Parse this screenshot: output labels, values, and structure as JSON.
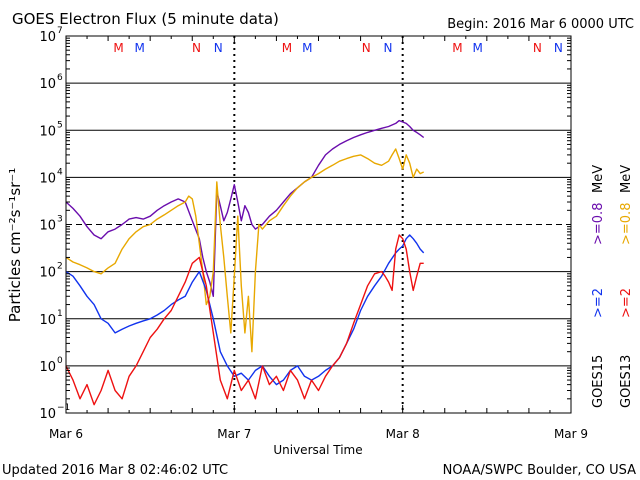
{
  "header": {
    "title": "GOES Electron Flux (5 minute data)",
    "begin": "Begin: 2016 Mar 6 0000 UTC"
  },
  "footer": {
    "updated": "Updated 2016 Mar  8 02:46:02 UTC",
    "credit": "NOAA/SWPC Boulder, CO USA"
  },
  "colors": {
    "goes13_high": "#e8a800",
    "goes15_high": "#6a0dad",
    "goes13_low": "#ee1111",
    "goes15_low": "#1133ee",
    "grid": "#000000"
  },
  "chart_data": {
    "type": "line",
    "xlabel": "Universal Time",
    "ylabel": "Particles cm⁻²s⁻¹sr⁻¹",
    "xlim": [
      0,
      72
    ],
    "ylim_exponent": [
      -1,
      7
    ],
    "x_ticks": [
      {
        "hour": 0,
        "label": "Mar 6"
      },
      {
        "hour": 24,
        "label": "Mar 7"
      },
      {
        "hour": 48,
        "label": "Mar 8"
      },
      {
        "hour": 72,
        "label": "Mar 9"
      }
    ],
    "y_ticks": [
      {
        "exp": 7,
        "label": "7"
      },
      {
        "exp": 6,
        "label": "6"
      },
      {
        "exp": 5,
        "label": "5"
      },
      {
        "exp": 4,
        "label": "4"
      },
      {
        "exp": 3,
        "label": "3"
      },
      {
        "exp": 2,
        "label": "2"
      },
      {
        "exp": 1,
        "label": "1"
      },
      {
        "exp": 0,
        "label": "0"
      },
      {
        "exp": -1,
        "label": "−1"
      }
    ],
    "tick_base": "10",
    "y_dashed_at": 3,
    "day_marker_hours": [
      24,
      48
    ],
    "satellite_markers": [
      {
        "hour": 7.5,
        "label": "M",
        "sat": "GOES13"
      },
      {
        "hour": 10.5,
        "label": "M",
        "sat": "GOES15"
      },
      {
        "hour": 18.6,
        "label": "N",
        "sat": "GOES13"
      },
      {
        "hour": 21.7,
        "label": "N",
        "sat": "GOES15"
      },
      {
        "hour": 31.5,
        "label": "M",
        "sat": "GOES13"
      },
      {
        "hour": 34.4,
        "label": "M",
        "sat": "GOES15"
      },
      {
        "hour": 42.8,
        "label": "N",
        "sat": "GOES13"
      },
      {
        "hour": 45.9,
        "label": "N",
        "sat": "GOES15"
      },
      {
        "hour": 55.8,
        "label": "M",
        "sat": "GOES13"
      },
      {
        "hour": 58.7,
        "label": "M",
        "sat": "GOES15"
      },
      {
        "hour": 67.2,
        "label": "N",
        "sat": "GOES13"
      },
      {
        "hour": 70.2,
        "label": "N",
        "sat": "GOES15"
      }
    ],
    "legend": {
      "goes13_label": "GOES13",
      "goes15_label": "GOES15",
      "low_energy_label": ">=2",
      "high_energy_label": ">=0.8",
      "unit": "MeV"
    },
    "series": [
      {
        "name": "GOES15 >=0.8 MeV",
        "color": "#6a0dad",
        "x": [
          0,
          1,
          2,
          3,
          4,
          5,
          6,
          7,
          8,
          9,
          10,
          11,
          12,
          13,
          14,
          15,
          16,
          17,
          18,
          19,
          19.5,
          20,
          20.5,
          21,
          21.5,
          22,
          22.5,
          23,
          23.5,
          24,
          24.5,
          25,
          25.5,
          26,
          26.5,
          27,
          27.5,
          28,
          29,
          30,
          31,
          32,
          33,
          34,
          35,
          36,
          37,
          38,
          39,
          40,
          41,
          42,
          43,
          44,
          45,
          46,
          47,
          47.5,
          48,
          48.5,
          49,
          49.5,
          50,
          50.5,
          51
        ],
        "values": [
          3000,
          2200,
          1500,
          900,
          600,
          500,
          700,
          800,
          1000,
          1300,
          1400,
          1300,
          1500,
          2000,
          2500,
          3000,
          3500,
          3000,
          1200,
          500,
          200,
          100,
          60,
          30,
          5000,
          2500,
          1200,
          1800,
          3500,
          7000,
          3000,
          1200,
          2500,
          1800,
          1000,
          800,
          900,
          1000,
          1500,
          2000,
          3000,
          4500,
          6000,
          8000,
          10000,
          18000,
          30000,
          40000,
          50000,
          60000,
          70000,
          80000,
          90000,
          100000,
          110000,
          120000,
          140000,
          160000,
          150000,
          140000,
          120000,
          100000,
          90000,
          80000,
          70000
        ]
      },
      {
        "name": "GOES13 >=0.8 MeV",
        "color": "#e8a800",
        "x": [
          0,
          1,
          2,
          3,
          4,
          5,
          6,
          7,
          8,
          9,
          10,
          11,
          12,
          13,
          14,
          15,
          16,
          17,
          17.5,
          18,
          18.5,
          19,
          19.5,
          20,
          20.5,
          21,
          21.5,
          22,
          22.5,
          23,
          23.5,
          24,
          24.5,
          25,
          25.5,
          26,
          26.5,
          27,
          27.5,
          28,
          29,
          30,
          31,
          32,
          33,
          34,
          35,
          36,
          37,
          38,
          39,
          40,
          41,
          42,
          43,
          44,
          45,
          46,
          46.5,
          47,
          47.5,
          48,
          48.5,
          49,
          49.5,
          50,
          50.5,
          51
        ],
        "values": [
          200,
          160,
          140,
          120,
          100,
          90,
          120,
          150,
          300,
          500,
          700,
          900,
          1000,
          1300,
          1600,
          2000,
          2500,
          3000,
          4000,
          3500,
          1500,
          400,
          100,
          20,
          30,
          100,
          8000,
          1000,
          200,
          30,
          5,
          80,
          1500,
          50,
          5,
          30,
          2,
          100,
          1000,
          800,
          1200,
          1500,
          2500,
          4000,
          6000,
          8000,
          10000,
          12000,
          15000,
          18000,
          22000,
          25000,
          28000,
          30000,
          25000,
          20000,
          18000,
          22000,
          30000,
          40000,
          25000,
          15000,
          30000,
          20000,
          10000,
          15000,
          12000,
          13000
        ]
      },
      {
        "name": "GOES15 >=2 MeV",
        "color": "#1133ee",
        "x": [
          0,
          1,
          2,
          3,
          4,
          5,
          6,
          7,
          8,
          9,
          10,
          11,
          12,
          13,
          14,
          15,
          16,
          17,
          18,
          19,
          20,
          21,
          22,
          23,
          24,
          25,
          26,
          27,
          28,
          29,
          30,
          31,
          32,
          33,
          34,
          35,
          36,
          37,
          38,
          39,
          40,
          41,
          42,
          43,
          44,
          45,
          46,
          47,
          47.5,
          48,
          48.5,
          49,
          49.5,
          50,
          50.5,
          51
        ],
        "values": [
          100,
          80,
          50,
          30,
          20,
          10,
          8,
          5,
          6,
          7,
          8,
          9,
          10,
          12,
          15,
          20,
          25,
          30,
          60,
          100,
          40,
          10,
          2,
          1,
          0.6,
          0.7,
          0.5,
          0.8,
          1,
          0.6,
          0.4,
          0.5,
          0.8,
          1,
          0.6,
          0.5,
          0.6,
          0.8,
          1,
          1.5,
          3,
          6,
          15,
          30,
          50,
          80,
          150,
          250,
          300,
          350,
          500,
          600,
          500,
          400,
          300,
          250
        ]
      },
      {
        "name": "GOES13 >=2 MeV",
        "color": "#ee1111",
        "x": [
          0,
          1,
          2,
          3,
          4,
          5,
          6,
          7,
          8,
          9,
          10,
          11,
          12,
          13,
          14,
          15,
          16,
          17,
          18,
          19,
          20,
          21,
          22,
          23,
          24,
          25,
          26,
          27,
          28,
          29,
          30,
          31,
          32,
          33,
          34,
          35,
          36,
          37,
          38,
          39,
          40,
          41,
          42,
          43,
          44,
          45,
          45.5,
          46,
          46.5,
          47,
          47.5,
          48,
          48.5,
          49,
          49.5,
          50,
          50.5,
          51
        ],
        "values": [
          1,
          0.5,
          0.2,
          0.4,
          0.15,
          0.3,
          0.8,
          0.3,
          0.2,
          0.6,
          1,
          2,
          4,
          6,
          10,
          15,
          30,
          60,
          150,
          200,
          50,
          5,
          0.5,
          0.2,
          0.8,
          0.3,
          0.5,
          0.2,
          1,
          0.4,
          0.6,
          0.3,
          0.8,
          0.5,
          0.2,
          0.5,
          0.3,
          0.6,
          1,
          1.5,
          3,
          8,
          20,
          50,
          90,
          100,
          80,
          60,
          40,
          300,
          600,
          500,
          300,
          100,
          40,
          80,
          150,
          150
        ]
      }
    ]
  }
}
